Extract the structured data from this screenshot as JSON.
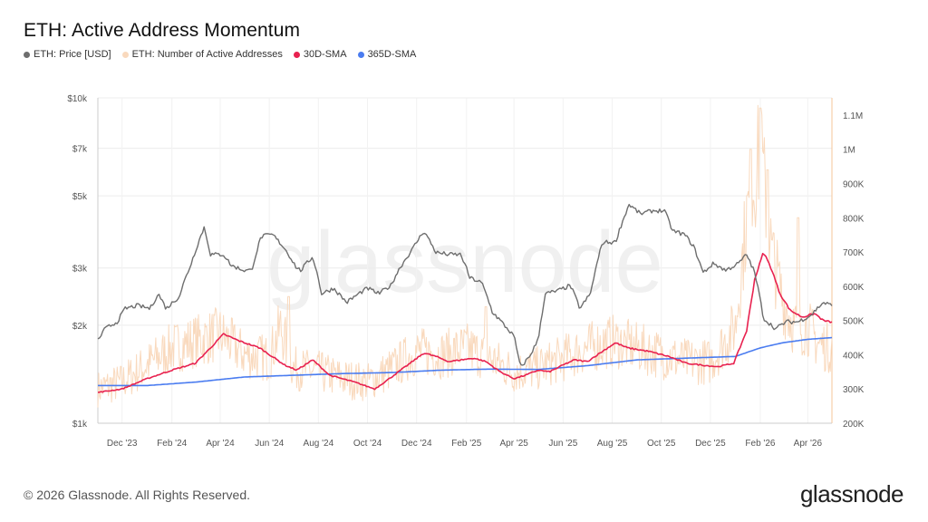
{
  "title": "ETH: Active Address Momentum",
  "legend": [
    {
      "label": "ETH: Price [USD]",
      "color": "#6e6e6e"
    },
    {
      "label": "ETH: Number of Active Addresses",
      "color": "#f9d9bd"
    },
    {
      "label": "30D-SMA",
      "color": "#e8214f"
    },
    {
      "label": "365D-SMA",
      "color": "#4a7cf0"
    }
  ],
  "footer": {
    "copyright": "© 2026 Glassnode. All Rights Reserved.",
    "logo": "glassnode"
  },
  "watermark": "glassnode",
  "chart_data": {
    "type": "line",
    "grid": true,
    "x_ticks": [
      "Dec '23",
      "Feb '24",
      "Apr '24",
      "Jun '24",
      "Aug '24",
      "Oct '24",
      "Dec '24",
      "Feb '25",
      "Apr '25",
      "Jun '25",
      "Aug '25",
      "Oct '25",
      "Dec '25",
      "Feb '26",
      "Apr '26"
    ],
    "left_axis": {
      "scale": "log",
      "range": [
        1000,
        10000
      ],
      "ticks": [
        "$10k",
        "$7k",
        "$5k",
        "$3k",
        "$2k",
        "$1k"
      ],
      "tick_values": [
        10000,
        7000,
        5000,
        3000,
        2000,
        1000
      ]
    },
    "right_axis": {
      "scale": "linear",
      "range": [
        200000,
        1150000
      ],
      "ticks": [
        "1.1M",
        "1M",
        "900K",
        "800K",
        "700K",
        "600K",
        "500K",
        "400K",
        "300K",
        "200K"
      ],
      "tick_values": [
        1100000,
        1000000,
        900000,
        800000,
        700000,
        600000,
        500000,
        400000,
        300000,
        200000
      ]
    },
    "x_range": [
      "2023-11-01",
      "2026-05-01"
    ],
    "series": [
      {
        "name": "ETH: Price [USD]",
        "axis": "left",
        "color": "#6e6e6e",
        "points": [
          [
            "2023-11-01",
            1800
          ],
          [
            "2023-11-10",
            1950
          ],
          [
            "2023-11-25",
            2050
          ],
          [
            "2023-12-05",
            2250
          ],
          [
            "2023-12-20",
            2300
          ],
          [
            "2024-01-05",
            2250
          ],
          [
            "2024-01-15",
            2500
          ],
          [
            "2024-01-25",
            2250
          ],
          [
            "2024-02-10",
            2450
          ],
          [
            "2024-02-25",
            3100
          ],
          [
            "2024-03-05",
            3600
          ],
          [
            "2024-03-12",
            4000
          ],
          [
            "2024-03-20",
            3300
          ],
          [
            "2024-04-05",
            3300
          ],
          [
            "2024-04-15",
            3050
          ],
          [
            "2024-05-01",
            2950
          ],
          [
            "2024-05-10",
            2950
          ],
          [
            "2024-05-22",
            3750
          ],
          [
            "2024-06-05",
            3800
          ],
          [
            "2024-06-20",
            3450
          ],
          [
            "2024-07-05",
            3000
          ],
          [
            "2024-07-10",
            2950
          ],
          [
            "2024-07-25",
            3250
          ],
          [
            "2024-08-05",
            2500
          ],
          [
            "2024-08-20",
            2600
          ],
          [
            "2024-09-05",
            2350
          ],
          [
            "2024-09-20",
            2500
          ],
          [
            "2024-10-01",
            2600
          ],
          [
            "2024-10-15",
            2500
          ],
          [
            "2024-10-30",
            2650
          ],
          [
            "2024-11-10",
            3000
          ],
          [
            "2024-11-25",
            3400
          ],
          [
            "2024-12-10",
            3900
          ],
          [
            "2024-12-25",
            3350
          ],
          [
            "2025-01-10",
            3300
          ],
          [
            "2025-01-25",
            3300
          ],
          [
            "2025-02-05",
            2800
          ],
          [
            "2025-02-20",
            2700
          ],
          [
            "2025-03-05",
            2200
          ],
          [
            "2025-03-20",
            2000
          ],
          [
            "2025-04-01",
            1850
          ],
          [
            "2025-04-09",
            1480
          ],
          [
            "2025-04-20",
            1600
          ],
          [
            "2025-05-01",
            1800
          ],
          [
            "2025-05-10",
            2500
          ],
          [
            "2025-05-25",
            2550
          ],
          [
            "2025-06-10",
            2650
          ],
          [
            "2025-06-22",
            2250
          ],
          [
            "2025-07-05",
            2500
          ],
          [
            "2025-07-20",
            3600
          ],
          [
            "2025-08-05",
            3600
          ],
          [
            "2025-08-22",
            4700
          ],
          [
            "2025-09-05",
            4400
          ],
          [
            "2025-09-20",
            4500
          ],
          [
            "2025-10-05",
            4500
          ],
          [
            "2025-10-15",
            3900
          ],
          [
            "2025-10-30",
            3800
          ],
          [
            "2025-11-10",
            3500
          ],
          [
            "2025-11-22",
            2900
          ],
          [
            "2025-12-05",
            3100
          ],
          [
            "2025-12-20",
            2950
          ],
          [
            "2026-01-05",
            3100
          ],
          [
            "2026-01-15",
            3300
          ],
          [
            "2026-01-25",
            2900
          ],
          [
            "2026-02-05",
            2100
          ],
          [
            "2026-02-20",
            1950
          ],
          [
            "2026-03-05",
            2050
          ],
          [
            "2026-03-20",
            2050
          ],
          [
            "2026-04-05",
            2150
          ],
          [
            "2026-04-20",
            2350
          ],
          [
            "2026-05-01",
            2300
          ]
        ]
      },
      {
        "name": "ETH: Number of Active Addresses",
        "axis": "right",
        "color": "#f9d9bd",
        "points": [
          [
            "2023-11-01",
            300000
          ],
          [
            "2023-12-01",
            320000
          ],
          [
            "2024-01-01",
            370000
          ],
          [
            "2024-02-01",
            420000
          ],
          [
            "2024-03-01",
            440000
          ],
          [
            "2024-04-01",
            460000
          ],
          [
            "2024-05-01",
            400000
          ],
          [
            "2024-06-01",
            390000
          ],
          [
            "2024-06-15",
            480000
          ],
          [
            "2024-07-01",
            360000
          ],
          [
            "2024-08-01",
            350000
          ],
          [
            "2024-09-01",
            330000
          ],
          [
            "2024-10-01",
            320000
          ],
          [
            "2024-11-01",
            360000
          ],
          [
            "2024-12-01",
            410000
          ],
          [
            "2025-01-01",
            400000
          ],
          [
            "2025-02-01",
            420000
          ],
          [
            "2025-03-01",
            390000
          ],
          [
            "2025-04-01",
            350000
          ],
          [
            "2025-05-01",
            360000
          ],
          [
            "2025-06-01",
            390000
          ],
          [
            "2025-07-01",
            420000
          ],
          [
            "2025-08-01",
            440000
          ],
          [
            "2025-09-01",
            420000
          ],
          [
            "2025-10-01",
            400000
          ],
          [
            "2025-11-01",
            380000
          ],
          [
            "2025-12-01",
            380000
          ],
          [
            "2026-01-01",
            480000
          ],
          [
            "2026-01-15",
            800000
          ],
          [
            "2026-02-01",
            1000000
          ],
          [
            "2026-02-15",
            700000
          ],
          [
            "2026-03-01",
            560000
          ],
          [
            "2026-03-15",
            480000
          ],
          [
            "2026-04-01",
            480000
          ],
          [
            "2026-04-15",
            430000
          ],
          [
            "2026-05-01",
            420000
          ]
        ],
        "peaks": [
          [
            "2024-06-25",
            570000
          ],
          [
            "2025-02-25",
            540000
          ],
          [
            "2026-01-20",
            1000000
          ],
          [
            "2026-02-01",
            1120000
          ],
          [
            "2026-02-10",
            940000
          ],
          [
            "2026-03-20",
            800000
          ]
        ]
      },
      {
        "name": "30D-SMA",
        "axis": "right",
        "color": "#e8214f",
        "points": [
          [
            "2023-11-01",
            290000
          ],
          [
            "2023-12-01",
            300000
          ],
          [
            "2024-01-01",
            330000
          ],
          [
            "2024-02-01",
            355000
          ],
          [
            "2024-03-01",
            375000
          ],
          [
            "2024-03-20",
            420000
          ],
          [
            "2024-04-05",
            460000
          ],
          [
            "2024-04-25",
            440000
          ],
          [
            "2024-05-20",
            420000
          ],
          [
            "2024-06-20",
            370000
          ],
          [
            "2024-07-05",
            355000
          ],
          [
            "2024-07-25",
            385000
          ],
          [
            "2024-08-15",
            340000
          ],
          [
            "2024-09-15",
            320000
          ],
          [
            "2024-10-10",
            300000
          ],
          [
            "2024-10-25",
            325000
          ],
          [
            "2024-11-20",
            370000
          ],
          [
            "2024-12-10",
            405000
          ],
          [
            "2024-12-25",
            395000
          ],
          [
            "2025-01-10",
            380000
          ],
          [
            "2025-01-25",
            385000
          ],
          [
            "2025-02-10",
            390000
          ],
          [
            "2025-02-25",
            380000
          ],
          [
            "2025-03-15",
            350000
          ],
          [
            "2025-04-01",
            330000
          ],
          [
            "2025-04-15",
            340000
          ],
          [
            "2025-05-01",
            355000
          ],
          [
            "2025-05-15",
            350000
          ],
          [
            "2025-06-01",
            370000
          ],
          [
            "2025-06-15",
            385000
          ],
          [
            "2025-07-01",
            380000
          ],
          [
            "2025-07-20",
            410000
          ],
          [
            "2025-08-05",
            435000
          ],
          [
            "2025-08-20",
            420000
          ],
          [
            "2025-09-15",
            410000
          ],
          [
            "2025-10-10",
            395000
          ],
          [
            "2025-11-01",
            375000
          ],
          [
            "2025-11-20",
            370000
          ],
          [
            "2025-12-10",
            365000
          ],
          [
            "2025-12-30",
            375000
          ],
          [
            "2026-01-15",
            470000
          ],
          [
            "2026-01-25",
            620000
          ],
          [
            "2026-02-05",
            700000
          ],
          [
            "2026-02-15",
            650000
          ],
          [
            "2026-02-25",
            580000
          ],
          [
            "2026-03-10",
            530000
          ],
          [
            "2026-03-25",
            510000
          ],
          [
            "2026-04-10",
            520000
          ],
          [
            "2026-04-20",
            500000
          ],
          [
            "2026-05-01",
            495000
          ]
        ]
      },
      {
        "name": "365D-SMA",
        "axis": "right",
        "color": "#4a7cf0",
        "points": [
          [
            "2023-11-01",
            310000
          ],
          [
            "2024-01-01",
            310000
          ],
          [
            "2024-03-01",
            320000
          ],
          [
            "2024-05-01",
            335000
          ],
          [
            "2024-07-01",
            340000
          ],
          [
            "2024-09-01",
            345000
          ],
          [
            "2024-11-01",
            348000
          ],
          [
            "2025-01-01",
            355000
          ],
          [
            "2025-03-01",
            358000
          ],
          [
            "2025-05-01",
            357000
          ],
          [
            "2025-07-01",
            368000
          ],
          [
            "2025-09-01",
            385000
          ],
          [
            "2025-11-01",
            390000
          ],
          [
            "2026-01-01",
            395000
          ],
          [
            "2026-02-01",
            420000
          ],
          [
            "2026-03-01",
            435000
          ],
          [
            "2026-04-01",
            445000
          ],
          [
            "2026-05-01",
            450000
          ]
        ]
      }
    ]
  }
}
